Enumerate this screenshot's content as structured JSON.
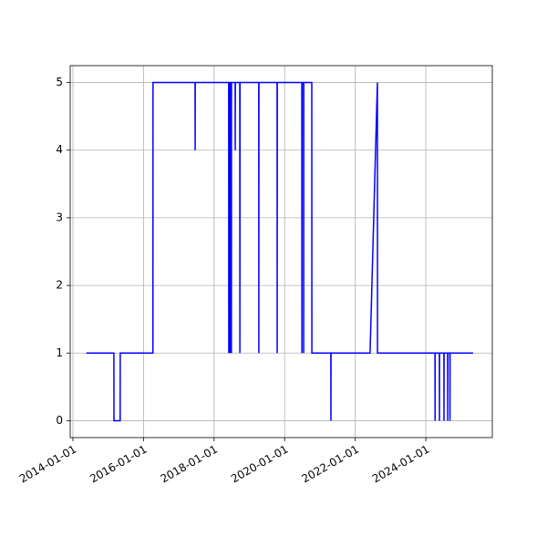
{
  "chart_data": {
    "type": "line",
    "x": [
      "2014-05-20",
      "2015-03-01",
      "2015-03-02",
      "2015-05-05",
      "2015-05-06",
      "2016-04-08",
      "2016-04-09",
      "2017-06-18",
      "2017-06-19",
      "2017-06-20",
      "2018-06-01",
      "2018-06-02",
      "2018-06-03",
      "2018-06-15",
      "2018-06-16",
      "2018-06-17",
      "2018-06-28",
      "2018-06-29",
      "2018-06-30",
      "2018-08-07",
      "2018-08-08",
      "2018-08-09",
      "2018-09-24",
      "2018-09-25",
      "2018-09-26",
      "2019-04-08",
      "2019-04-09",
      "2019-04-10",
      "2019-10-15",
      "2019-10-16",
      "2019-10-17",
      "2020-06-27",
      "2020-06-28",
      "2020-06-29",
      "2020-07-15",
      "2020-07-16",
      "2020-07-17",
      "2020-10-08",
      "2020-10-09",
      "2021-04-23",
      "2021-04-24",
      "2021-04-25",
      "2022-06-03",
      "2022-08-18",
      "2022-08-19",
      "2024-04-05",
      "2024-04-06",
      "2024-04-07",
      "2024-05-20",
      "2024-05-21",
      "2024-05-22",
      "2024-07-06",
      "2024-07-07",
      "2024-07-08",
      "2024-08-14",
      "2024-08-15",
      "2024-08-16",
      "2024-09-06",
      "2024-09-07",
      "2024-09-08",
      "2025-05-04"
    ],
    "series": [
      {
        "color": "#0000ff",
        "values": [
          1,
          1,
          0,
          0,
          1,
          1,
          5,
          5,
          4,
          5,
          5,
          1,
          5,
          5,
          1,
          5,
          5,
          1,
          5,
          5,
          4,
          5,
          5,
          1,
          5,
          5,
          1,
          5,
          5,
          1,
          5,
          5,
          1,
          5,
          5,
          1,
          5,
          5,
          1,
          1,
          0,
          1,
          1,
          5,
          1,
          1,
          0,
          1,
          1,
          0,
          1,
          1,
          0,
          1,
          1,
          0,
          1,
          1,
          0,
          1,
          1
        ]
      }
    ],
    "xlim": [
      "2013-12-04",
      "2025-11-19"
    ],
    "xticks": [
      "2014-01-01",
      "2016-01-01",
      "2018-01-01",
      "2020-01-01",
      "2022-01-01",
      "2024-01-01"
    ],
    "ylim": [
      -0.25,
      5.25
    ],
    "yticks": [
      0,
      1,
      2,
      3,
      4,
      5
    ],
    "grid": true
  }
}
